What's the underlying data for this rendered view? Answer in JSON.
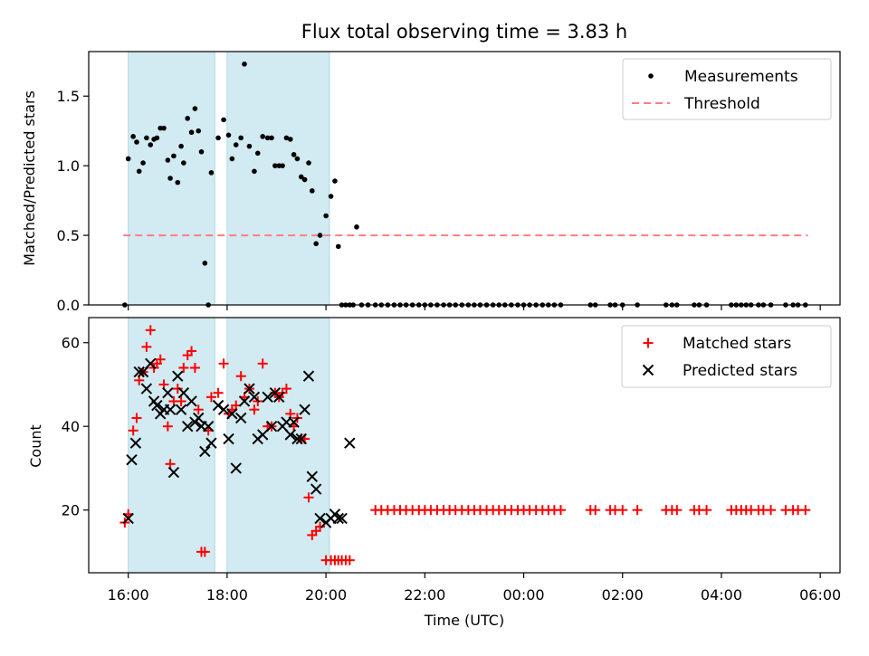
{
  "title": "Flux total observing time = 3.83 h",
  "colors": {
    "shade": "#add8e6",
    "measurement": "#000000",
    "threshold": "#ff7f7f",
    "matched": "#ff0000",
    "predicted": "#000000"
  },
  "chart_data": [
    {
      "type": "scatter",
      "ylabel": "Matched/Predicted stars",
      "xlabel": "",
      "x_units": "hours since 16:00 UTC",
      "xlim": [
        -0.8,
        14.4
      ],
      "ylim": [
        0,
        1.82
      ],
      "yticks": [
        0.0,
        0.5,
        1.0,
        1.5
      ],
      "ytick_labels": [
        "0.0",
        "0.5",
        "1.0",
        "1.5"
      ],
      "xticks": [
        0,
        2,
        4,
        6,
        8,
        10,
        12,
        14
      ],
      "grid": false,
      "legend_position": "top-right",
      "legend": [
        "Measurements",
        "Threshold"
      ],
      "shaded_intervals": [
        [
          0.0,
          1.75
        ],
        [
          2.0,
          4.07
        ]
      ],
      "threshold": {
        "name": "Threshold",
        "y": 0.5,
        "x_range": [
          -0.1,
          13.75
        ]
      },
      "series": [
        {
          "name": "Measurements",
          "marker": "dot",
          "x": [
            -0.07,
            0.0,
            0.1,
            0.17,
            0.22,
            0.3,
            0.37,
            0.45,
            0.52,
            0.58,
            0.65,
            0.72,
            0.8,
            0.85,
            0.92,
            1.0,
            1.07,
            1.12,
            1.2,
            1.28,
            1.35,
            1.42,
            1.48,
            1.55,
            1.62,
            1.68,
            1.82,
            1.93,
            2.03,
            2.1,
            2.18,
            2.28,
            2.35,
            2.45,
            2.55,
            2.62,
            2.72,
            2.82,
            2.9,
            2.97,
            3.05,
            3.12,
            3.2,
            3.28,
            3.35,
            3.42,
            3.5,
            3.57,
            3.65,
            3.72,
            3.8,
            3.88,
            4.0,
            4.1,
            4.18,
            4.25,
            4.32,
            4.4,
            4.48,
            4.55,
            4.62,
            4.72,
            4.85
          ],
          "y": [
            0.0,
            1.05,
            1.21,
            1.17,
            0.96,
            1.02,
            1.2,
            1.15,
            1.19,
            1.2,
            1.27,
            1.27,
            1.04,
            0.91,
            1.07,
            0.88,
            1.14,
            1.02,
            1.34,
            1.24,
            1.41,
            1.25,
            1.1,
            0.3,
            0.0,
            0.95,
            1.2,
            1.33,
            1.22,
            1.05,
            1.15,
            1.2,
            1.73,
            1.14,
            0.96,
            1.09,
            1.21,
            1.2,
            1.2,
            1.0,
            1.0,
            1.0,
            1.2,
            1.19,
            1.08,
            1.05,
            0.92,
            0.9,
            1.02,
            0.82,
            0.44,
            0.5,
            0.64,
            0.78,
            0.89,
            0.42,
            0.0,
            0.0,
            0.0,
            0.0,
            0.56,
            0.0,
            0.0
          ]
        },
        {
          "name": "Measurements (zero values)",
          "marker": "dot",
          "x": [
            5.0,
            5.12,
            5.25,
            5.38,
            5.5,
            5.62,
            5.75,
            5.88,
            6.0,
            6.12,
            6.25,
            6.38,
            6.5,
            6.62,
            6.75,
            6.88,
            7.0,
            7.12,
            7.25,
            7.38,
            7.5,
            7.62,
            7.75,
            7.88,
            8.0,
            8.12,
            8.25,
            8.38,
            8.5,
            8.62,
            8.75,
            9.35,
            9.45,
            9.75,
            9.85,
            10.0,
            10.3,
            10.88,
            11.0,
            11.1,
            11.45,
            11.55,
            11.7,
            12.2,
            12.3,
            12.4,
            12.5,
            12.6,
            12.75,
            12.85,
            13.0,
            13.3,
            13.45,
            13.55,
            13.7
          ]
        }
      ]
    },
    {
      "type": "scatter",
      "ylabel": "Count",
      "xlabel": "Time (UTC)",
      "x_units": "hours since 16:00 UTC",
      "xlim": [
        -0.8,
        14.4
      ],
      "ylim": [
        5,
        66
      ],
      "yticks": [
        20,
        40,
        60
      ],
      "ytick_labels": [
        "20",
        "40",
        "60"
      ],
      "xticks": [
        0,
        2,
        4,
        6,
        8,
        10,
        12,
        14
      ],
      "xtick_labels": [
        "16:00",
        "18:00",
        "20:00",
        "22:00",
        "00:00",
        "02:00",
        "04:00",
        "06:00"
      ],
      "grid": false,
      "legend_position": "top-right",
      "legend": [
        "Matched stars",
        "Predicted stars"
      ],
      "shaded_intervals": [
        [
          0.0,
          1.75
        ],
        [
          2.0,
          4.07
        ]
      ],
      "series": [
        {
          "name": "Matched stars",
          "marker": "plus",
          "x": [
            -0.07,
            0.0,
            0.1,
            0.17,
            0.22,
            0.3,
            0.37,
            0.45,
            0.52,
            0.58,
            0.65,
            0.72,
            0.8,
            0.85,
            0.92,
            1.0,
            1.07,
            1.12,
            1.2,
            1.28,
            1.35,
            1.42,
            1.48,
            1.55,
            1.62,
            1.68,
            1.82,
            1.93,
            2.03,
            2.1,
            2.18,
            2.28,
            2.35,
            2.45,
            2.55,
            2.62,
            2.72,
            2.82,
            2.9,
            2.97,
            3.05,
            3.12,
            3.2,
            3.28,
            3.35,
            3.42,
            3.5,
            3.57,
            3.65,
            3.72,
            3.8,
            3.88,
            4.0,
            4.1,
            4.18,
            4.25,
            4.32,
            4.4,
            4.48
          ],
          "y": [
            17,
            19,
            39,
            42,
            51,
            53,
            59,
            63,
            54,
            55,
            56,
            50,
            40,
            31,
            46,
            49,
            46,
            54,
            57,
            58,
            54,
            44,
            10,
            10,
            39,
            47,
            48,
            55,
            43,
            44,
            45,
            52,
            47,
            49,
            44,
            46,
            55,
            40,
            40,
            48,
            47,
            48,
            49,
            43,
            40,
            42,
            37,
            37,
            23,
            14,
            15,
            16,
            8,
            8,
            8,
            8,
            8,
            8,
            8
          ]
        },
        {
          "name": "Predicted stars",
          "marker": "x",
          "x": [
            0.0,
            0.07,
            0.15,
            0.22,
            0.3,
            0.37,
            0.45,
            0.52,
            0.58,
            0.65,
            0.72,
            0.8,
            0.85,
            0.92,
            1.0,
            1.07,
            1.12,
            1.2,
            1.28,
            1.35,
            1.42,
            1.48,
            1.55,
            1.62,
            1.68,
            1.82,
            1.93,
            2.03,
            2.1,
            2.18,
            2.28,
            2.35,
            2.45,
            2.55,
            2.62,
            2.72,
            2.82,
            2.9,
            2.97,
            3.05,
            3.12,
            3.2,
            3.28,
            3.35,
            3.42,
            3.5,
            3.57,
            3.65,
            3.72,
            3.8,
            3.88,
            4.0,
            4.1,
            4.18,
            4.25,
            4.32,
            4.48
          ],
          "y": [
            18,
            32,
            36,
            53,
            53,
            49,
            55,
            46,
            45,
            43,
            44,
            48,
            44,
            29,
            52,
            44,
            48,
            40,
            46,
            41,
            42,
            40,
            34,
            40,
            36,
            45,
            44,
            37,
            43,
            30,
            42,
            46,
            49,
            47,
            37,
            38,
            47,
            40,
            48,
            47,
            40,
            41,
            38,
            41,
            37,
            37,
            44,
            52,
            28,
            25,
            18,
            17,
            18,
            19,
            18,
            18,
            36
          ]
        },
        {
          "name": "Matched stars (no predictions)",
          "marker": "plus",
          "x": [
            5.0,
            5.12,
            5.25,
            5.38,
            5.5,
            5.62,
            5.75,
            5.88,
            6.0,
            6.12,
            6.25,
            6.38,
            6.5,
            6.62,
            6.75,
            6.88,
            7.0,
            7.12,
            7.25,
            7.38,
            7.5,
            7.62,
            7.75,
            7.88,
            8.0,
            8.12,
            8.25,
            8.38,
            8.5,
            8.62,
            8.75,
            9.35,
            9.45,
            9.75,
            9.85,
            10.0,
            10.3,
            10.88,
            11.0,
            11.1,
            11.45,
            11.55,
            11.7,
            12.2,
            12.3,
            12.4,
            12.5,
            12.6,
            12.75,
            12.85,
            13.0,
            13.3,
            13.45,
            13.55,
            13.7
          ],
          "y_constant": 20
        }
      ]
    }
  ]
}
